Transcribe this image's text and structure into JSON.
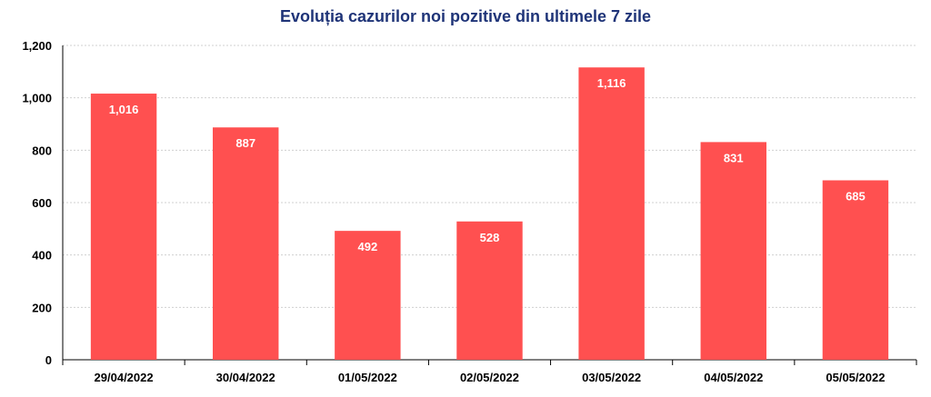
{
  "chart_data": {
    "type": "bar",
    "title": "Evoluția cazurilor noi pozitive din ultimele 7 zile",
    "xlabel": "",
    "ylabel": "",
    "categories": [
      "29/04/2022",
      "30/04/2022",
      "01/05/2022",
      "02/05/2022",
      "03/05/2022",
      "04/05/2022",
      "05/05/2022"
    ],
    "values": [
      1016,
      887,
      492,
      528,
      1116,
      831,
      685
    ],
    "data_labels": [
      "1,016",
      "887",
      "492",
      "528",
      "1,116",
      "831",
      "685"
    ],
    "ylim": [
      0,
      1200
    ],
    "yticks": [
      0,
      200,
      400,
      600,
      800,
      1000,
      1200
    ],
    "ytick_labels": [
      "0",
      "200",
      "400",
      "600",
      "800",
      "1,000",
      "1,200"
    ],
    "grid": true,
    "legend": "none",
    "bar_color": "#ff5050",
    "grid_color": "#d0d0d0",
    "title_color": "#1f3478"
  }
}
